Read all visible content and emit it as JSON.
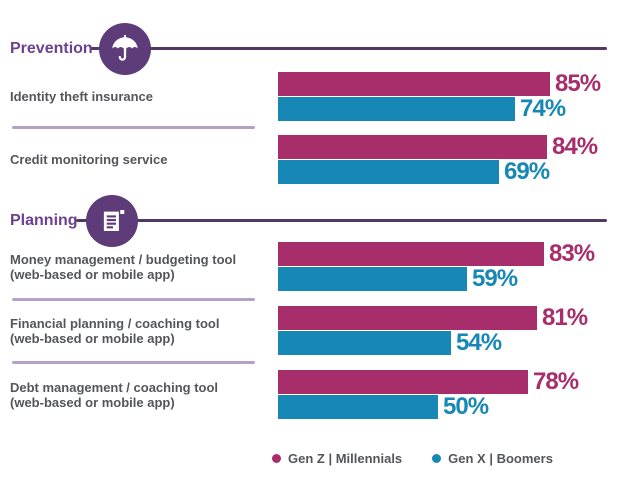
{
  "chart_data": {
    "type": "bar",
    "orientation": "horizontal",
    "value_unit": "%",
    "xlim": [
      0,
      100
    ],
    "grid": false,
    "legend_position": "bottom",
    "series": [
      {
        "name": "Gen Z | Millennials",
        "color": "#A72D6B"
      },
      {
        "name": "Gen X | Boomers",
        "color": "#1787B5"
      }
    ],
    "sections": [
      {
        "title": "Prevention",
        "icon": "umbrella-icon",
        "items": [
          {
            "label": "Identity theft insurance",
            "sublabel": "",
            "values": [
              85,
              74
            ]
          },
          {
            "label": "Credit monitoring service",
            "sublabel": "",
            "values": [
              84,
              69
            ]
          }
        ]
      },
      {
        "title": "Planning",
        "icon": "document-icon",
        "items": [
          {
            "label": "Money management / budgeting tool",
            "sublabel": "(web-based or mobile app)",
            "values": [
              83,
              59
            ]
          },
          {
            "label": "Financial planning / coaching tool",
            "sublabel": "(web-based or mobile app)",
            "values": [
              81,
              54
            ]
          },
          {
            "label": "Debt management / coaching tool",
            "sublabel": "(web-based or mobile app)",
            "values": [
              78,
              50
            ]
          }
        ]
      }
    ],
    "colors": {
      "gen_z_pink": "#A72D6B",
      "gen_x_blue": "#1787B5",
      "section_title_purple": "#6B4190",
      "icon_circle_purple": "#5E3B79",
      "header_line_purple": "#533864",
      "divider_lavender": "#B5A1C6",
      "label_gray": "#54565A"
    }
  }
}
